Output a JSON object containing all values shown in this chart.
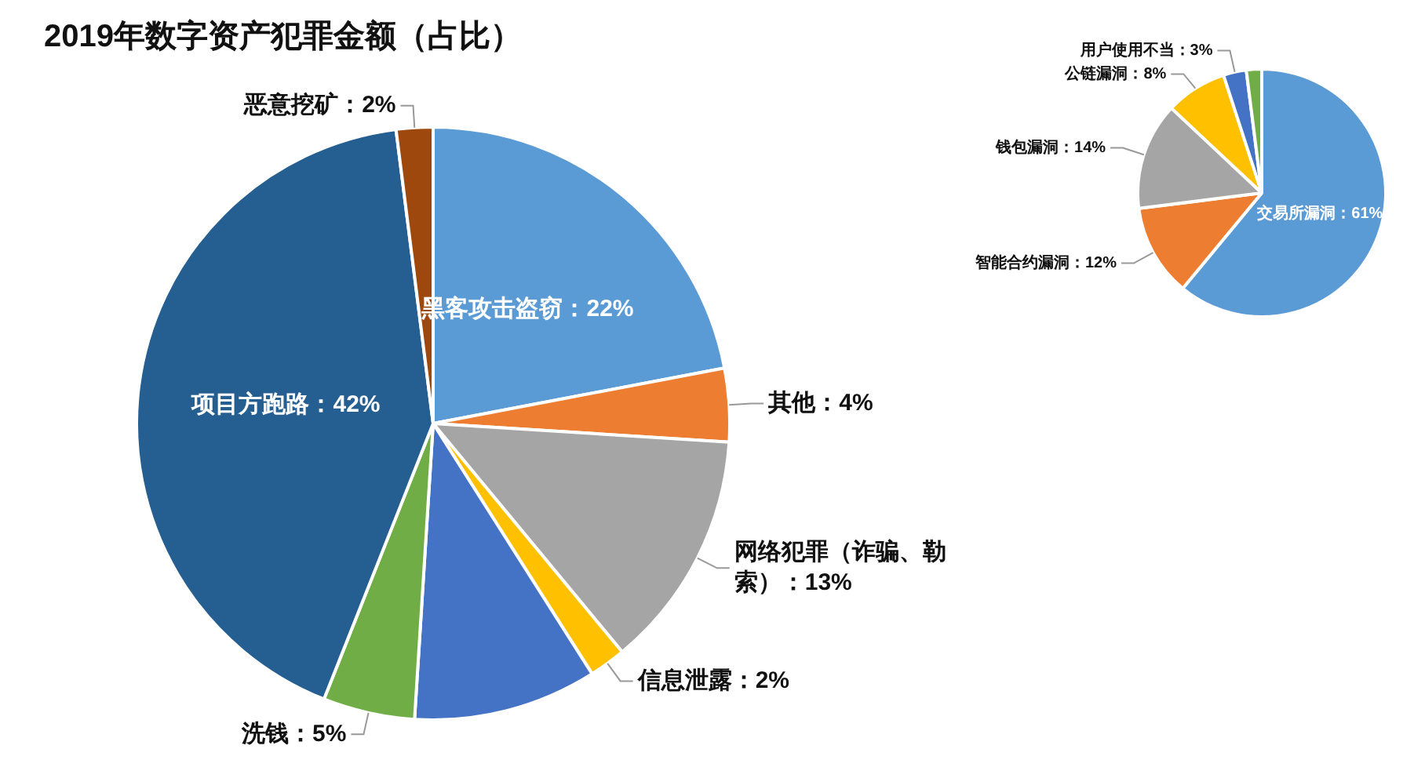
{
  "chart_data": [
    {
      "type": "pie",
      "title": "2019年数字资产犯罪金额（占比）",
      "categories": [
        "黑客攻击盗窃",
        "其他",
        "网络犯罪（诈骗、勒索）",
        "信息泄露",
        null,
        "洗钱",
        "项目方跑路",
        "恶意挖矿"
      ],
      "values": [
        22,
        4,
        13,
        2,
        10,
        5,
        42,
        2
      ],
      "value_labels": [
        "22%",
        "4%",
        "13%",
        "2%",
        null,
        "5%",
        "42%",
        "2%"
      ],
      "colors": [
        "#5b9bd5",
        "#ed7d31",
        "#a5a5a5",
        "#ffc000",
        "#4472c4",
        "#70ad47",
        "#255e91",
        "#9e480e"
      ],
      "legend": false
    },
    {
      "type": "pie",
      "categories": [
        "交易所漏洞",
        "智能合约漏洞",
        "钱包漏洞",
        "公链漏洞",
        "用户使用不当",
        null
      ],
      "values": [
        61,
        12,
        14,
        8,
        3,
        2
      ],
      "value_labels": [
        "61%",
        "12%",
        "14%",
        "8%",
        "3%",
        null
      ],
      "colors": [
        "#5b9bd5",
        "#ed7d31",
        "#a5a5a5",
        "#ffc000",
        "#4472c4",
        "#70ad47"
      ],
      "legend": false
    }
  ]
}
